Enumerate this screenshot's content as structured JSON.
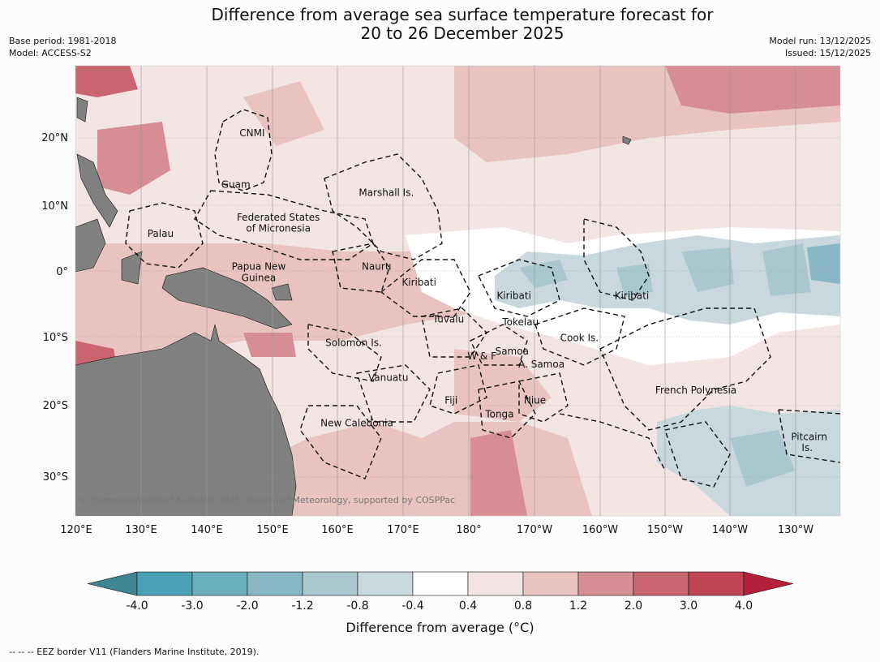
{
  "title": {
    "line1": "Difference from average sea surface temperature forecast for",
    "line2": "20 to 26 December 2025"
  },
  "meta_left": {
    "base_period": "Base period: 1981-2018",
    "model": "Model: ACCESS-S2"
  },
  "meta_right": {
    "model_run": "Model run: 13/12/2025",
    "issued": "Issued: 15/12/2025"
  },
  "axes": {
    "lon_ticks": [
      "120°E",
      "130°E",
      "140°E",
      "150°E",
      "160°E",
      "170°E",
      "180°",
      "170°W",
      "160°W",
      "150°W",
      "140°W",
      "130°W"
    ],
    "lat_ticks": [
      "20°N",
      "10°N",
      "0°",
      "10°S",
      "20°S",
      "30°S"
    ]
  },
  "regions": [
    {
      "label": "CNMI",
      "lon": 147,
      "lat": 20.1
    },
    {
      "label": "Guam",
      "lon": 144.5,
      "lat": 12.4
    },
    {
      "label": "Marshall Is.",
      "lon": 167.5,
      "lat": 11.2
    },
    {
      "label": "Federated States",
      "lon": 151,
      "lat": 7.5
    },
    {
      "label": "of Micronesia",
      "lon": 151,
      "lat": 5.9
    },
    {
      "label": "Palau",
      "lon": 133,
      "lat": 5.1
    },
    {
      "label": "Papua New",
      "lon": 148,
      "lat": 0.2
    },
    {
      "label": "Guinea",
      "lon": 148,
      "lat": -1.5
    },
    {
      "label": "Nauru",
      "lon": 166,
      "lat": 0.2
    },
    {
      "label": "Kiribati",
      "lon": 172.5,
      "lat": -2.2
    },
    {
      "label": "Kiribati",
      "lon": -173,
      "lat": -4.2
    },
    {
      "label": "Kiribati",
      "lon": -155,
      "lat": -4.2
    },
    {
      "label": "Tuvalu",
      "lon": 177,
      "lat": -7.7
    },
    {
      "label": "Tokelau",
      "lon": -172,
      "lat": -8.1
    },
    {
      "label": "Cook Is.",
      "lon": -163,
      "lat": -10.5
    },
    {
      "label": "Solomon Is.",
      "lon": 162.5,
      "lat": -11.2
    },
    {
      "label": "Samoa",
      "lon": -173.3,
      "lat": -12.5
    },
    {
      "label": "W & F",
      "lon": -177.9,
      "lat": -13.2
    },
    {
      "label": "A. Samoa",
      "lon": -168.8,
      "lat": -14.4
    },
    {
      "label": "Vanuatu",
      "lon": 167.8,
      "lat": -16.4
    },
    {
      "label": "Fiji",
      "lon": 177.4,
      "lat": -19.8
    },
    {
      "label": "Niue",
      "lon": -169.8,
      "lat": -19.8
    },
    {
      "label": "Tonga",
      "lon": -175.2,
      "lat": -21.9
    },
    {
      "label": "French Polynesia",
      "lon": -145.2,
      "lat": -18.3
    },
    {
      "label": "New Caledonia",
      "lon": 163,
      "lat": -23.2
    },
    {
      "label": "Pitcairn",
      "lon": -127.9,
      "lat": -25.3
    },
    {
      "label": "Is.",
      "lon": -128.2,
      "lat": -26.9
    }
  ],
  "copyright": "© Commonwealth of Australia 2025, Bureau of Meteorology, supported by COSPPac",
  "colorbar": {
    "ticks": [
      "-4.0",
      "-3.0",
      "-2.0",
      "-1.2",
      "-0.8",
      "-0.4",
      "0.4",
      "0.8",
      "1.2",
      "2.0",
      "3.0",
      "4.0"
    ],
    "colors": [
      "#4aa1b3",
      "#6aadbc",
      "#88b6c4",
      "#a9c8ce",
      "#c9d8dd",
      "#ffffff",
      "#f4e5e5",
      "#e8c3c2",
      "#d68d95",
      "#c9656f",
      "#c14452"
    ],
    "under_color": "#3c8591",
    "over_color": "#b3213b",
    "label": "Difference from average (°C)"
  },
  "footer": "--  --  -- EEZ border V11 (Flanders Marine Institute, 2019)."
}
